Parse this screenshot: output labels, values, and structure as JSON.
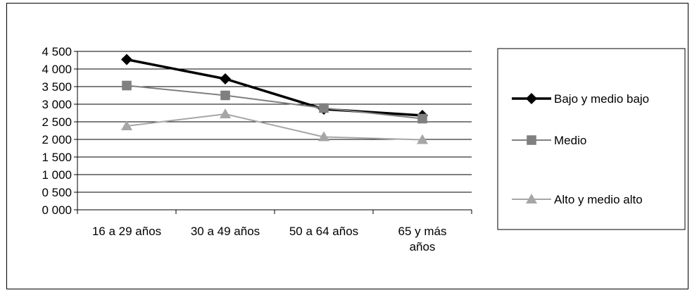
{
  "chart_data": {
    "type": "line",
    "title": "",
    "xlabel": "",
    "ylabel": "",
    "categories": [
      "16 a 29 años",
      "30 a 49 años",
      "50 a 64 años",
      "65 y más años"
    ],
    "category_lines": [
      [
        "16 a 29 años"
      ],
      [
        "30 a 49 años"
      ],
      [
        "50 a 64 años"
      ],
      [
        "65 y más",
        "años"
      ]
    ],
    "yticks": [
      "0 000",
      "0 500",
      "1 000",
      "1 500",
      "2 000",
      "2 500",
      "3 000",
      "3 500",
      "4 000",
      "4 500"
    ],
    "ylim": [
      0,
      4500
    ],
    "grid": true,
    "legend_position": "right",
    "series": [
      {
        "name": "Bajo y medio bajo",
        "values": [
          4270,
          3720,
          2860,
          2680
        ],
        "color": "#000000",
        "marker": "diamond"
      },
      {
        "name": "Medio",
        "values": [
          3530,
          3250,
          2890,
          2590
        ],
        "color": "#808080",
        "marker": "square"
      },
      {
        "name": "Alto y medio alto",
        "values": [
          2380,
          2720,
          2070,
          1990
        ],
        "color": "#a6a6a6",
        "marker": "triangle"
      }
    ]
  }
}
